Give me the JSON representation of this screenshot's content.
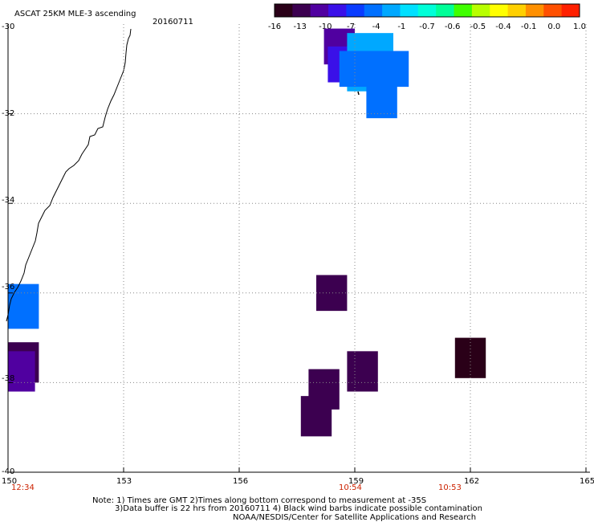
{
  "header": {
    "title": "ASCAT 25KM MLE-3 ascending",
    "date": "20160711"
  },
  "colorbar": {
    "colors": [
      "#2a0018",
      "#3c0050",
      "#5000a0",
      "#3a10e8",
      "#0a3cff",
      "#0070ff",
      "#00a8ff",
      "#00e0ff",
      "#00ffd8",
      "#00ff98",
      "#40ff00",
      "#b8ff00",
      "#ffff00",
      "#ffd000",
      "#ff9000",
      "#ff5000",
      "#ff2000"
    ],
    "tick_labels": [
      "-16",
      "-13",
      "-10",
      "-7",
      "-4",
      "-1",
      "-0.7",
      "-0.6",
      "-0.5",
      "-0.4",
      "-0.1",
      "0.0",
      "1.0"
    ]
  },
  "axes": {
    "x_tick_labels": [
      "150",
      "153",
      "156",
      "159",
      "162",
      "165"
    ],
    "y_tick_labels": [
      "-30",
      "-32",
      "-34",
      "-36",
      "-38",
      "-40"
    ],
    "time_labels": [
      "12:34",
      "10:54",
      "10:53"
    ]
  },
  "map_data": {
    "x_range": [
      150,
      165
    ],
    "y_range": [
      -40,
      -30
    ],
    "gridlines": true,
    "cells": [
      {
        "lon": 158.2,
        "lat": -30.1,
        "w": 0.8,
        "h": 0.8,
        "color": "#5000a0"
      },
      {
        "lon": 158.3,
        "lat": -30.5,
        "w": 0.8,
        "h": 0.8,
        "color": "#3a10e8"
      },
      {
        "lon": 158.8,
        "lat": -30.2,
        "w": 1.2,
        "h": 1.3,
        "color": "#00a8ff"
      },
      {
        "lon": 158.6,
        "lat": -30.6,
        "w": 0.9,
        "h": 0.8,
        "color": "#0070ff"
      },
      {
        "lon": 159.5,
        "lat": -30.6,
        "w": 0.9,
        "h": 0.8,
        "color": "#0070ff"
      },
      {
        "lon": 159.3,
        "lat": -31.3,
        "w": 0.8,
        "h": 0.8,
        "color": "#0070ff"
      },
      {
        "lon": 150.0,
        "lat": -35.8,
        "w": 0.8,
        "h": 1.0,
        "color": "#0070ff"
      },
      {
        "lon": 150.0,
        "lat": -37.1,
        "w": 0.8,
        "h": 0.9,
        "color": "#3c0050"
      },
      {
        "lon": 150.0,
        "lat": -37.3,
        "w": 0.7,
        "h": 0.9,
        "color": "#5000a0"
      },
      {
        "lon": 158.0,
        "lat": -35.6,
        "w": 0.8,
        "h": 0.8,
        "color": "#3c0050"
      },
      {
        "lon": 161.6,
        "lat": -37.0,
        "w": 0.8,
        "h": 0.9,
        "color": "#2a0018"
      },
      {
        "lon": 158.8,
        "lat": -37.3,
        "w": 0.8,
        "h": 0.9,
        "color": "#3c0050"
      },
      {
        "lon": 157.8,
        "lat": -37.7,
        "w": 0.8,
        "h": 0.9,
        "color": "#3c0050"
      },
      {
        "lon": 157.6,
        "lat": -38.3,
        "w": 0.8,
        "h": 0.9,
        "color": "#3c0050"
      }
    ]
  },
  "notes": {
    "line1": "Note: 1) Times are GMT 2)Times along bottom correspond to measurement at -35S",
    "line2": "3)Data buffer is 22 hrs from 20160711 4) Black wind barbs indicate possible contamination",
    "line3": "NOAA/NESDIS/Center for Satellite Applications and Research"
  }
}
